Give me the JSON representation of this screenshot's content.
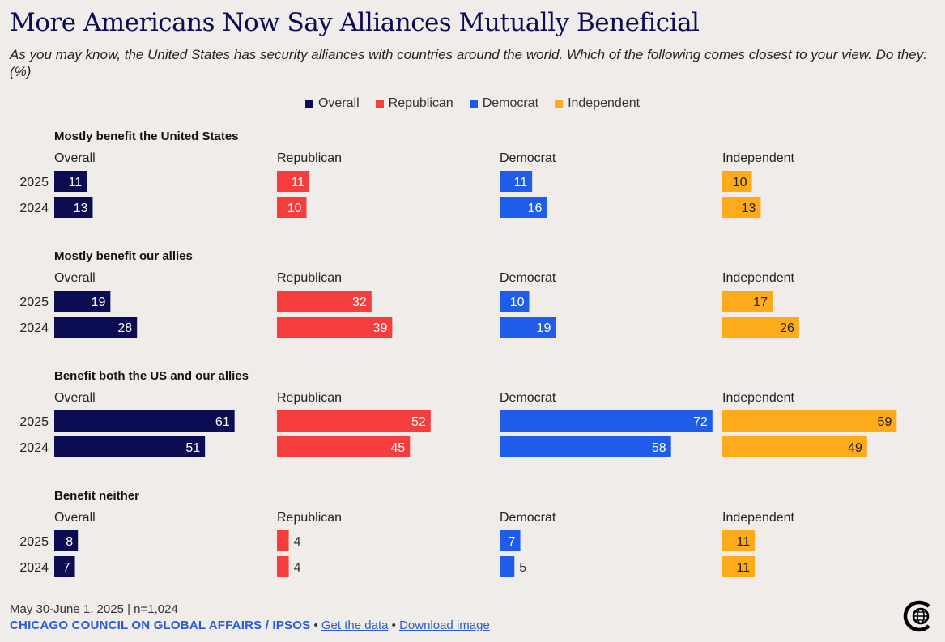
{
  "header": {
    "title": "More Americans Now Say Alliances Mutually Beneficial",
    "subtitle": "As you may know, the United States has security alliances with countries around the world. Which of the following comes closest to your view. Do they: (%)"
  },
  "legend": [
    {
      "label": "Overall",
      "color": "#0c0c52"
    },
    {
      "label": "Republican",
      "color": "#f53d3d"
    },
    {
      "label": "Democrat",
      "color": "#1f5ce8"
    },
    {
      "label": "Independent",
      "color": "#fdab1b"
    }
  ],
  "chart_data": {
    "type": "bar",
    "title": "More Americans Now Say Alliances Mutually Beneficial",
    "years": [
      "2025",
      "2024"
    ],
    "groups": [
      "Overall",
      "Republican",
      "Democrat",
      "Independent"
    ],
    "colors": [
      "#0c0c52",
      "#f53d3d",
      "#1f5ce8",
      "#fdab1b"
    ],
    "xlim": [
      0,
      100
    ],
    "panels": [
      {
        "title": "Mostly benefit the United States",
        "series": [
          {
            "name": "Overall",
            "values": [
              11,
              13
            ]
          },
          {
            "name": "Republican",
            "values": [
              11,
              10
            ]
          },
          {
            "name": "Democrat",
            "values": [
              11,
              16
            ]
          },
          {
            "name": "Independent",
            "values": [
              10,
              13
            ]
          }
        ]
      },
      {
        "title": "Mostly benefit our allies",
        "series": [
          {
            "name": "Overall",
            "values": [
              19,
              28
            ]
          },
          {
            "name": "Republican",
            "values": [
              32,
              39
            ]
          },
          {
            "name": "Democrat",
            "values": [
              10,
              19
            ]
          },
          {
            "name": "Independent",
            "values": [
              17,
              26
            ]
          }
        ]
      },
      {
        "title": "Benefit both the US and our allies",
        "series": [
          {
            "name": "Overall",
            "values": [
              61,
              51
            ]
          },
          {
            "name": "Republican",
            "values": [
              52,
              45
            ]
          },
          {
            "name": "Democrat",
            "values": [
              72,
              58
            ]
          },
          {
            "name": "Independent",
            "values": [
              59,
              49
            ]
          }
        ]
      },
      {
        "title": "Benefit neither",
        "series": [
          {
            "name": "Overall",
            "values": [
              8,
              7
            ]
          },
          {
            "name": "Republican",
            "values": [
              4,
              4
            ]
          },
          {
            "name": "Democrat",
            "values": [
              7,
              5
            ]
          },
          {
            "name": "Independent",
            "values": [
              11,
              11
            ]
          }
        ]
      }
    ]
  },
  "footer": {
    "note": "May 30-June 1, 2025 | n=1,024",
    "source": "CHICAGO COUNCIL ON GLOBAL AFFAIRS / IPSOS",
    "bullet": "•",
    "get_data": "Get the data",
    "download": "Download image"
  },
  "logo": {
    "icon": "chicago-council-logo-icon"
  }
}
